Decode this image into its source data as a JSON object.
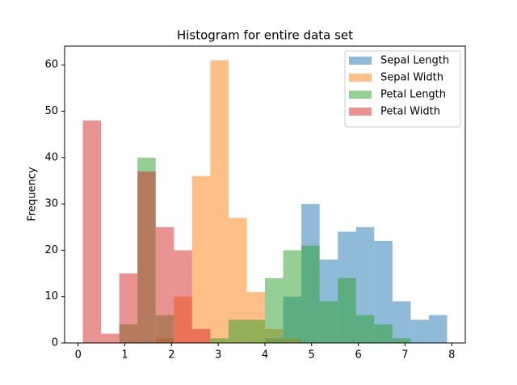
{
  "chart_data": {
    "type": "histogram",
    "title": "Histogram for entire data set",
    "y_label": "Frequency",
    "bins": [
      0.1,
      0.49,
      0.88,
      1.27,
      1.66,
      2.05,
      2.44,
      2.83,
      3.22,
      3.61,
      4.0,
      4.39,
      4.78,
      5.17,
      5.56,
      5.95,
      6.34,
      6.73,
      7.12,
      7.51,
      7.9
    ],
    "series": [
      {
        "name": "Sepal Length",
        "color": "#1f77b4",
        "values": [
          0,
          0,
          0,
          0,
          0,
          0,
          0,
          0,
          0,
          0,
          1,
          10,
          30,
          18,
          24,
          25,
          22,
          9,
          5,
          6
        ]
      },
      {
        "name": "Sepal Width",
        "color": "#ff7f0e",
        "values": [
          0,
          0,
          0,
          0,
          1,
          10,
          36,
          61,
          27,
          11,
          3,
          1,
          0,
          0,
          0,
          0,
          0,
          0,
          0,
          0
        ]
      },
      {
        "name": "Petal Length",
        "color": "#2ca02c",
        "values": [
          0,
          0,
          4,
          40,
          6,
          0,
          0,
          1,
          5,
          5,
          14,
          20,
          21,
          9,
          14,
          6,
          4,
          1,
          0,
          0
        ]
      },
      {
        "name": "Petal Width",
        "color": "#d62728",
        "values": [
          48,
          2,
          15,
          37,
          25,
          20,
          3,
          0,
          0,
          0,
          0,
          0,
          0,
          0,
          0,
          0,
          0,
          0,
          0,
          0
        ]
      }
    ],
    "xlim": [
      -0.29,
      8.29
    ],
    "xticks": [
      0,
      1,
      2,
      3,
      4,
      5,
      6,
      7,
      8
    ],
    "ylim": [
      0,
      64.05
    ],
    "yticks": [
      0,
      10,
      20,
      30,
      40,
      50,
      60
    ],
    "opacity": 0.5,
    "legend": "upper right",
    "grid": false
  }
}
